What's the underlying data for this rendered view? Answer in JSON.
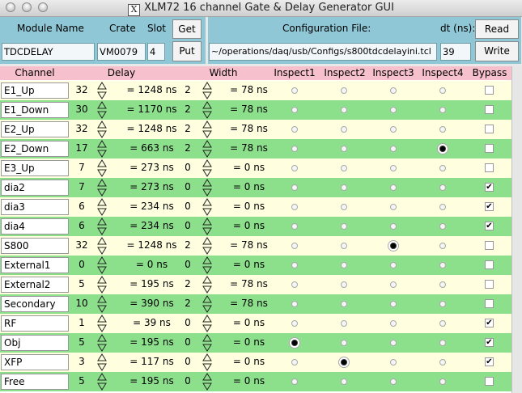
{
  "window": {
    "title": "XLM72 16 channel Gate & Delay Generator GUI",
    "x_logo": "X"
  },
  "header": {
    "module_name_label": "Module Name",
    "crate_label": "Crate",
    "slot_label": "Slot",
    "get_button": "Get",
    "put_button": "Put",
    "module_name_value": "TDCDELAY",
    "crate_value": "VM0079",
    "slot_value": "4",
    "config_file_label": "Configuration File:",
    "dt_label": "dt (ns):",
    "read_button": "Read",
    "write_button": "Write",
    "config_file_value": "~/operations/daq/usb/Configs/s800tdcdelayini.tcl",
    "dt_value": "39"
  },
  "columns": {
    "channel": "Channel",
    "delay": "Delay",
    "width": "Width",
    "inspect1": "Inspect1",
    "inspect2": "Inspect2",
    "inspect3": "Inspect3",
    "inspect4": "Inspect4",
    "bypass": "Bypass"
  },
  "channels": [
    {
      "name": "E1_Up",
      "delay": "32",
      "delay_ns": "= 1248 ns",
      "width": "2",
      "width_ns": "= 78 ns",
      "inspect": 0,
      "bypass": false
    },
    {
      "name": "E1_Down",
      "delay": "30",
      "delay_ns": "= 1170 ns",
      "width": "2",
      "width_ns": "= 78 ns",
      "inspect": 0,
      "bypass": false
    },
    {
      "name": "E2_Up",
      "delay": "32",
      "delay_ns": "= 1248 ns",
      "width": "2",
      "width_ns": "= 78 ns",
      "inspect": 0,
      "bypass": false
    },
    {
      "name": "E2_Down",
      "delay": "17",
      "delay_ns": "= 663 ns",
      "width": "2",
      "width_ns": "= 78 ns",
      "inspect": 4,
      "bypass": false
    },
    {
      "name": "E3_Up",
      "delay": "7",
      "delay_ns": "= 273 ns",
      "width": "0",
      "width_ns": "= 0 ns",
      "inspect": 0,
      "bypass": false
    },
    {
      "name": "dia2",
      "delay": "7",
      "delay_ns": "= 273 ns",
      "width": "0",
      "width_ns": "= 0 ns",
      "inspect": 0,
      "bypass": true
    },
    {
      "name": "dia3",
      "delay": "6",
      "delay_ns": "= 234 ns",
      "width": "0",
      "width_ns": "= 0 ns",
      "inspect": 0,
      "bypass": true
    },
    {
      "name": "dia4",
      "delay": "6",
      "delay_ns": "= 234 ns",
      "width": "0",
      "width_ns": "= 0 ns",
      "inspect": 0,
      "bypass": true
    },
    {
      "name": "S800",
      "delay": "32",
      "delay_ns": "= 1248 ns",
      "width": "2",
      "width_ns": "= 78 ns",
      "inspect": 3,
      "bypass": false
    },
    {
      "name": "External1",
      "delay": "0",
      "delay_ns": "= 0 ns",
      "width": "0",
      "width_ns": "= 0 ns",
      "inspect": 0,
      "bypass": false
    },
    {
      "name": "External2",
      "delay": "5",
      "delay_ns": "= 195 ns",
      "width": "2",
      "width_ns": "= 78 ns",
      "inspect": 0,
      "bypass": false
    },
    {
      "name": "Secondary",
      "delay": "10",
      "delay_ns": "= 390 ns",
      "width": "2",
      "width_ns": "= 78 ns",
      "inspect": 0,
      "bypass": false
    },
    {
      "name": "RF",
      "delay": "1",
      "delay_ns": "= 39 ns",
      "width": "0",
      "width_ns": "= 0 ns",
      "inspect": 0,
      "bypass": true
    },
    {
      "name": "Obj",
      "delay": "5",
      "delay_ns": "= 195 ns",
      "width": "0",
      "width_ns": "= 0 ns",
      "inspect": 1,
      "bypass": true
    },
    {
      "name": "XFP",
      "delay": "3",
      "delay_ns": "= 117 ns",
      "width": "0",
      "width_ns": "= 0 ns",
      "inspect": 2,
      "bypass": true
    },
    {
      "name": "Free",
      "delay": "5",
      "delay_ns": "= 195 ns",
      "width": "0",
      "width_ns": "= 0 ns",
      "inspect": 0,
      "bypass": false
    }
  ],
  "colors": {
    "header_bg": "#8fc7d6",
    "column_header_bg": "#f6c0cd",
    "row_odd": "#ffffe0",
    "row_even": "#8ce08c"
  },
  "icons": {
    "spinbox": "up-down-arrows-icon",
    "checkmark": "✔"
  }
}
